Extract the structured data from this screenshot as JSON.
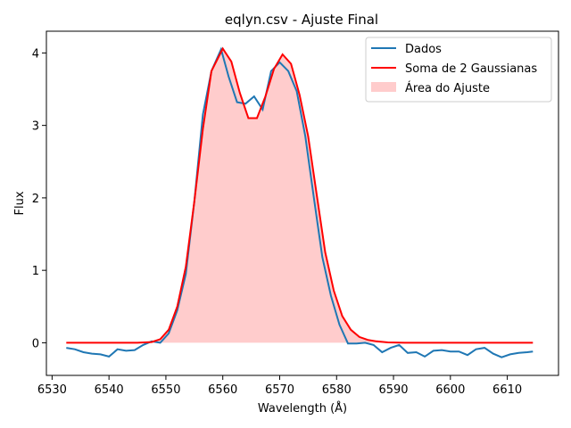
{
  "chart_data": {
    "type": "line",
    "title": "eqlyn.csv - Ajuste Final",
    "xlabel": "Wavelength (Å)",
    "ylabel": "Flux",
    "xlim": [
      6529,
      6619
    ],
    "ylim": [
      -0.45,
      4.3
    ],
    "xticks": [
      6530,
      6540,
      6550,
      6560,
      6570,
      6580,
      6590,
      6600,
      6610
    ],
    "yticks": [
      0,
      1,
      2,
      3,
      4
    ],
    "grid": false,
    "legend_position": "top-right",
    "colors": {
      "data": "#1f77b4",
      "fit": "#ff0000",
      "fill": "#ffcccc"
    },
    "series": [
      {
        "name": "Dados",
        "x": [
          6532.5,
          6534,
          6535.5,
          6537,
          6538.5,
          6540,
          6541.5,
          6543,
          6544.5,
          6546,
          6547.5,
          6549,
          6550.5,
          6552,
          6553.5,
          6555,
          6556.5,
          6558,
          6559.7,
          6561,
          6562.5,
          6564,
          6565.5,
          6567,
          6568.5,
          6570,
          6571.5,
          6573,
          6574.5,
          6576,
          6577.5,
          6579,
          6580.5,
          6582,
          6583.5,
          6585,
          6586.5,
          6588,
          6589.5,
          6591,
          6592.5,
          6594,
          6595.5,
          6597,
          6598.5,
          6600,
          6601.5,
          6603,
          6604.5,
          6606,
          6607.5,
          6609,
          6610.5,
          6612,
          6613.5,
          6614.5
        ],
        "values": [
          -0.07,
          -0.09,
          -0.13,
          -0.15,
          -0.16,
          -0.19,
          -0.09,
          -0.11,
          -0.1,
          -0.03,
          0.02,
          0.0,
          0.13,
          0.45,
          0.95,
          1.95,
          3.15,
          3.75,
          4.05,
          3.68,
          3.32,
          3.3,
          3.4,
          3.22,
          3.75,
          3.87,
          3.75,
          3.47,
          2.85,
          2.0,
          1.18,
          0.65,
          0.25,
          -0.01,
          -0.01,
          0.0,
          -0.03,
          -0.13,
          -0.07,
          -0.03,
          -0.14,
          -0.13,
          -0.19,
          -0.11,
          -0.1,
          -0.12,
          -0.12,
          -0.17,
          -0.09,
          -0.07,
          -0.15,
          -0.2,
          -0.16,
          -0.14,
          -0.13,
          -0.12
        ]
      },
      {
        "name": "Soma de 2 Gaussianas",
        "x": [
          6532.5,
          6535,
          6540,
          6545,
          6547.5,
          6549,
          6550.5,
          6552,
          6553.5,
          6555,
          6556.5,
          6558,
          6560,
          6561.5,
          6563,
          6564.5,
          6566,
          6567.5,
          6569,
          6570.5,
          6572,
          6573.5,
          6575,
          6576.5,
          6578,
          6579.5,
          6581,
          6582.5,
          6584,
          6585.5,
          6587,
          6589,
          6592,
          6600,
          6614.5
        ],
        "values": [
          0,
          0,
          0,
          0,
          0.01,
          0.05,
          0.18,
          0.5,
          1.05,
          1.95,
          2.95,
          3.75,
          4.06,
          3.88,
          3.45,
          3.1,
          3.1,
          3.4,
          3.78,
          3.98,
          3.85,
          3.42,
          2.85,
          2.05,
          1.25,
          0.72,
          0.37,
          0.18,
          0.08,
          0.04,
          0.02,
          0.005,
          0,
          0,
          0
        ]
      }
    ],
    "fill_series": "Área do Ajuste",
    "legend": [
      "Dados",
      "Soma de 2 Gaussianas",
      "Área do Ajuste"
    ]
  }
}
